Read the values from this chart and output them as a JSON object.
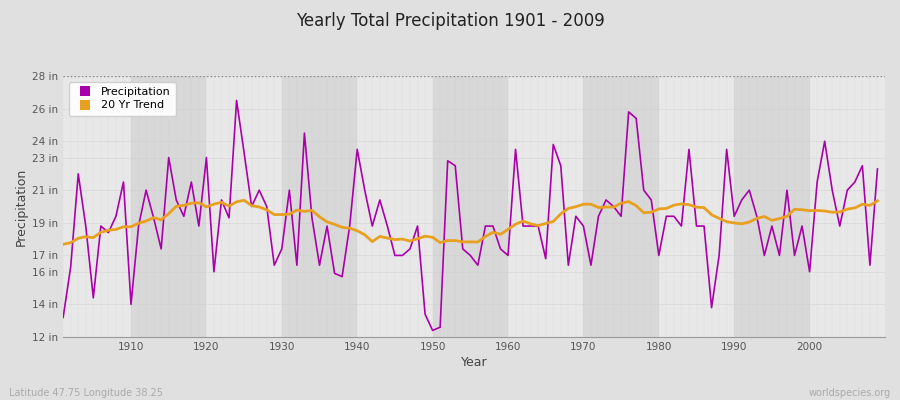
{
  "title": "Yearly Total Precipitation 1901 - 2009",
  "xlabel": "Year",
  "ylabel": "Precipitation",
  "subtitle_left": "Latitude 47.75 Longitude 38.25",
  "subtitle_right": "worldspecies.org",
  "ylim": [
    12,
    28
  ],
  "precip_color": "#aa00aa",
  "trend_color": "#e8a020",
  "fig_bg": "#e0e0e0",
  "ax_bg": "#e8e8e8",
  "band_light": "#e8e8e8",
  "band_dark": "#d8d8d8",
  "years": [
    1901,
    1902,
    1903,
    1904,
    1905,
    1906,
    1907,
    1908,
    1909,
    1910,
    1911,
    1912,
    1913,
    1914,
    1915,
    1916,
    1917,
    1918,
    1919,
    1920,
    1921,
    1922,
    1923,
    1924,
    1925,
    1926,
    1927,
    1928,
    1929,
    1930,
    1931,
    1932,
    1933,
    1934,
    1935,
    1936,
    1937,
    1938,
    1939,
    1940,
    1941,
    1942,
    1943,
    1944,
    1945,
    1946,
    1947,
    1948,
    1949,
    1950,
    1951,
    1952,
    1953,
    1954,
    1955,
    1956,
    1957,
    1958,
    1959,
    1960,
    1961,
    1962,
    1963,
    1964,
    1965,
    1966,
    1967,
    1968,
    1969,
    1970,
    1971,
    1972,
    1973,
    1974,
    1975,
    1976,
    1977,
    1978,
    1979,
    1980,
    1981,
    1982,
    1983,
    1984,
    1985,
    1986,
    1987,
    1988,
    1989,
    1990,
    1991,
    1992,
    1993,
    1994,
    1995,
    1996,
    1997,
    1998,
    1999,
    2000,
    2001,
    2002,
    2003,
    2004,
    2005,
    2006,
    2007,
    2008,
    2009
  ],
  "precip": [
    13.2,
    16.3,
    22.0,
    18.8,
    14.4,
    18.8,
    18.4,
    19.4,
    21.5,
    14.0,
    18.8,
    21.0,
    19.3,
    17.4,
    23.0,
    20.4,
    19.4,
    21.5,
    18.8,
    23.0,
    16.0,
    20.4,
    19.3,
    26.5,
    23.3,
    20.0,
    21.0,
    20.0,
    16.4,
    17.4,
    21.0,
    16.4,
    24.5,
    19.3,
    16.4,
    18.8,
    15.9,
    15.7,
    18.8,
    23.5,
    21.0,
    18.8,
    20.4,
    18.8,
    17.0,
    17.0,
    17.4,
    18.8,
    13.4,
    12.4,
    12.6,
    22.8,
    22.5,
    17.4,
    17.0,
    16.4,
    18.8,
    18.8,
    17.4,
    17.0,
    23.5,
    18.8,
    18.8,
    18.8,
    16.8,
    23.8,
    22.5,
    16.4,
    19.4,
    18.8,
    16.4,
    19.4,
    20.4,
    20.0,
    19.4,
    25.8,
    25.4,
    21.0,
    20.4,
    17.0,
    19.4,
    19.4,
    18.8,
    23.5,
    18.8,
    18.8,
    13.8,
    17.0,
    23.5,
    19.4,
    20.4,
    21.0,
    19.4,
    17.0,
    18.8,
    17.0,
    21.0,
    17.0,
    18.8,
    16.0,
    21.5,
    24.0,
    21.0,
    18.8,
    21.0,
    21.5,
    22.5,
    16.4,
    22.3
  ],
  "ytick_vals": [
    12,
    14,
    16,
    17,
    19,
    21,
    23,
    24,
    26,
    28
  ],
  "ytick_labels": [
    "12 in",
    "14 in",
    "16 in",
    "17 in",
    "19 in",
    "21 in",
    "23 in",
    "24 in",
    "26 in",
    "28 in"
  ],
  "xticks": [
    1910,
    1920,
    1930,
    1940,
    1950,
    1960,
    1970,
    1980,
    1990,
    2000
  ]
}
